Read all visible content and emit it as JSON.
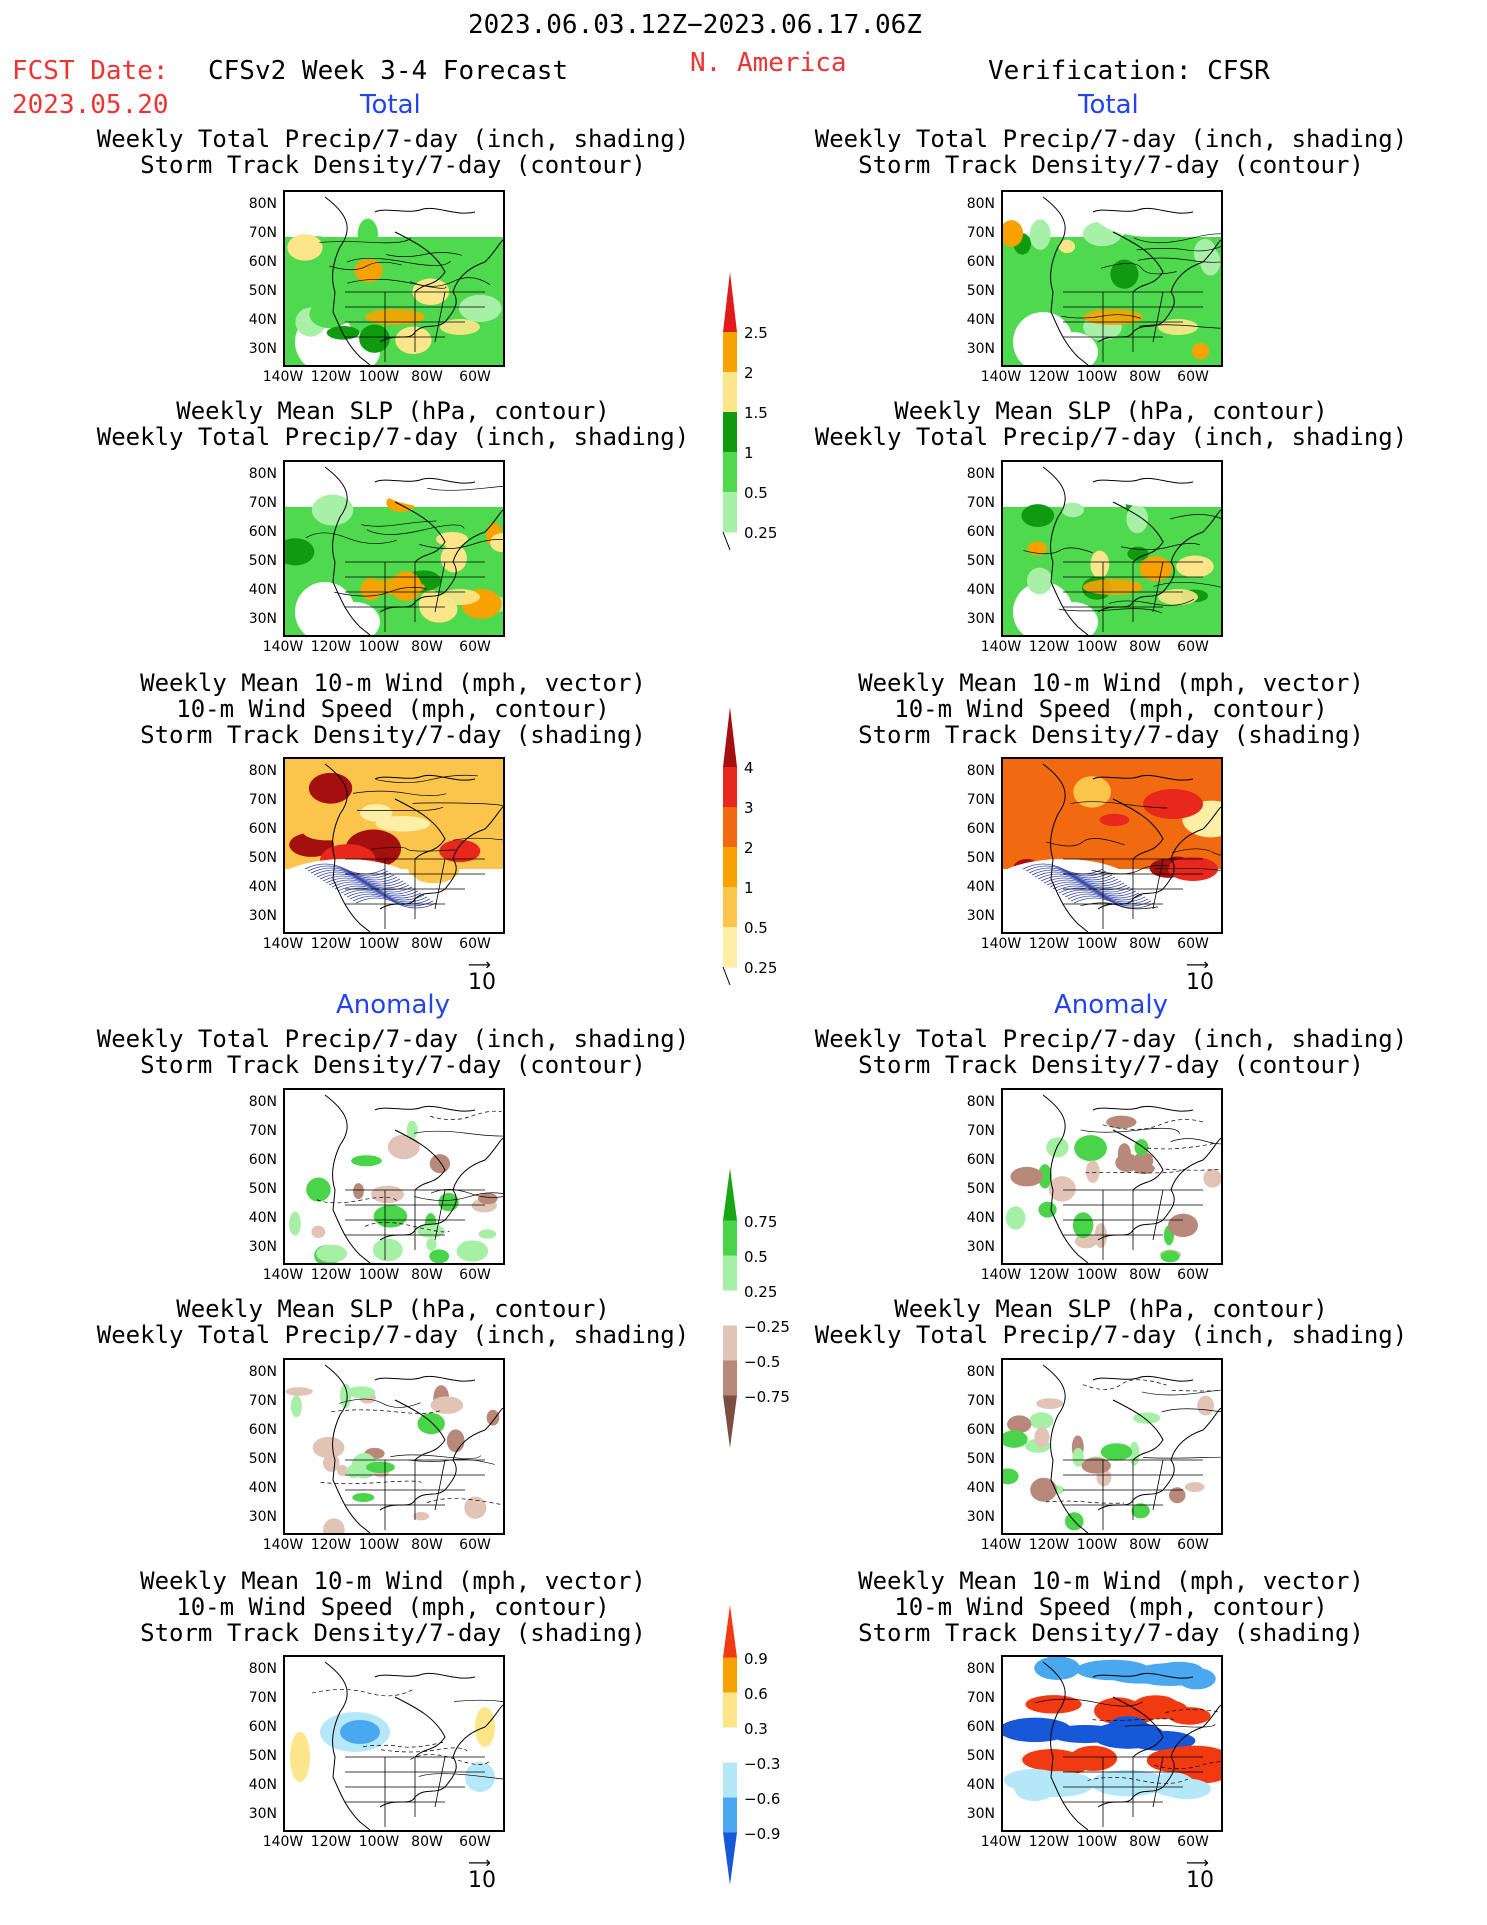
{
  "header": {
    "period": "2023.06.03.12Z−2023.06.17.06Z",
    "fcst_date_label": "FCST Date:",
    "fcst_date_value": "2023.05.20",
    "model_title": "CFSv2 Week 3-4 Forecast",
    "region": "N. America",
    "verification": "Verification: CFSR"
  },
  "sections": {
    "total": "Total",
    "anomaly": "Anomaly"
  },
  "panel_titles": {
    "precip_storm": [
      "Weekly Total Precip/7-day (inch, shading)",
      "Storm Track Density/7-day (contour)"
    ],
    "slp_precip": [
      "Weekly Mean SLP (hPa, contour)",
      "Weekly Total Precip/7-day (inch, shading)"
    ],
    "wind_storm": [
      "Weekly Mean 10-m Wind (mph, vector)",
      "10-m Wind Speed (mph, contour)",
      "Storm Track Density/7-day (shading)"
    ]
  },
  "axes": {
    "lat_labels": [
      "80N",
      "70N",
      "60N",
      "50N",
      "40N",
      "30N"
    ],
    "lon_labels": [
      "140W",
      "120W",
      "100W",
      "80W",
      "60W"
    ]
  },
  "vector_reference": "10",
  "contour_labels": {
    "total_precip": "0.5",
    "total_wind": "2",
    "anom_a": "0.6",
    "anom_b": "-0.3",
    "anom_c": "-0.9"
  },
  "colorbars": {
    "precip_total": {
      "labels": [
        "2.5",
        "2",
        "1.5",
        "1",
        "0.5",
        "0.25"
      ],
      "colors": [
        "#e21a1a",
        "#f7a200",
        "#fde58a",
        "#109a10",
        "#4fd94f",
        "#a8f0a8"
      ]
    },
    "storm_total": {
      "labels": [
        "4",
        "3",
        "2",
        "1",
        "0.5",
        "0.25"
      ],
      "colors": [
        "#a50f0f",
        "#e8281c",
        "#f26a10",
        "#f7a200",
        "#fbc54c",
        "#fdf0a6"
      ]
    },
    "precip_anom": {
      "labels": [
        "0.75",
        "0.5",
        "0.25",
        "−0.25",
        "−0.5",
        "−0.75"
      ],
      "colors": [
        "#16a616",
        "#49d449",
        "#a6f0a6",
        "#ffffff",
        "#e2c4b6",
        "#b8897a",
        "#7a4f40"
      ]
    },
    "storm_anom": {
      "labels": [
        "0.9",
        "0.6",
        "0.3",
        "−0.3",
        "−0.6",
        "−0.9"
      ],
      "colors": [
        "#f23a12",
        "#f7a200",
        "#fde58a",
        "#ffffff",
        "#b4e8f8",
        "#4aa8f0",
        "#1658d8"
      ]
    }
  },
  "colors": {
    "red_text": "#ee3333",
    "blue_text": "#2244ee"
  }
}
